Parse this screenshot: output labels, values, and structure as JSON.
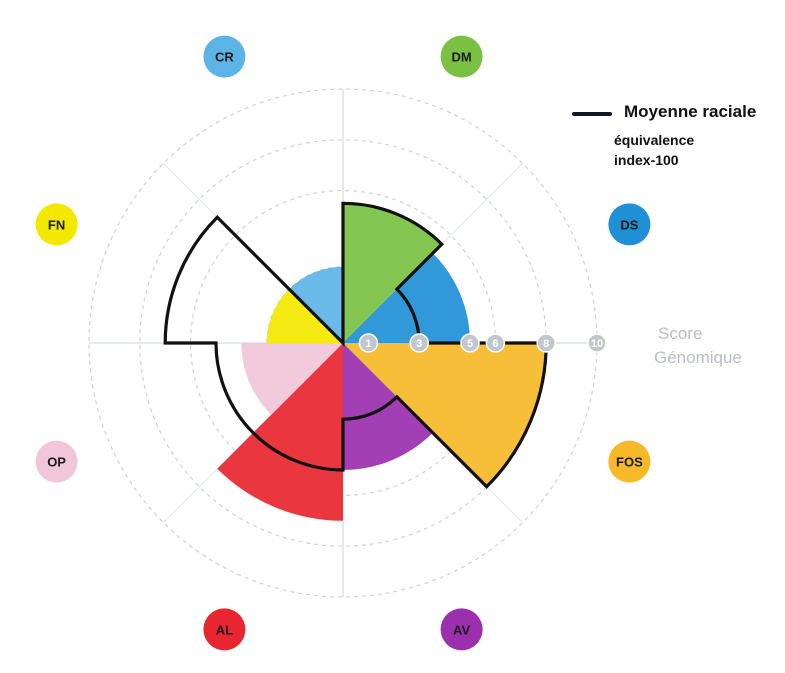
{
  "chart_data": {
    "type": "polar-area",
    "rmax": 10,
    "grid_rings": [
      3,
      6,
      8,
      10
    ],
    "ticks": [
      "1",
      "3",
      "5",
      "6",
      "8",
      "10"
    ],
    "axis_title": [
      "Score",
      "Génomique"
    ],
    "legend": {
      "label": "Moyenne raciale",
      "sublabel": [
        "équivalence",
        "index-100"
      ]
    },
    "categories": [
      {
        "name": "DM",
        "color": "#7ac143",
        "score": 5.5,
        "average": 5.5
      },
      {
        "name": "DS",
        "color": "#1f8fd6",
        "score": 5.0,
        "average": 3.0
      },
      {
        "name": "FOS",
        "color": "#f6b928",
        "score": 8.0,
        "average": 8.0
      },
      {
        "name": "AV",
        "color": "#9b2fae",
        "score": 5.0,
        "average": 3.0
      },
      {
        "name": "AL",
        "color": "#e8262f",
        "score": 7.0,
        "average": 5.0
      },
      {
        "name": "OP",
        "color": "#f2c6d9",
        "score": 4.0,
        "average": 5.0
      },
      {
        "name": "FN",
        "color": "#f2e800",
        "score": 3.0,
        "average": 7.0
      },
      {
        "name": "CR",
        "color": "#5cb4e6",
        "score": 3.0,
        "average": 0
      }
    ],
    "grid": true,
    "legend_position": "top-right"
  }
}
